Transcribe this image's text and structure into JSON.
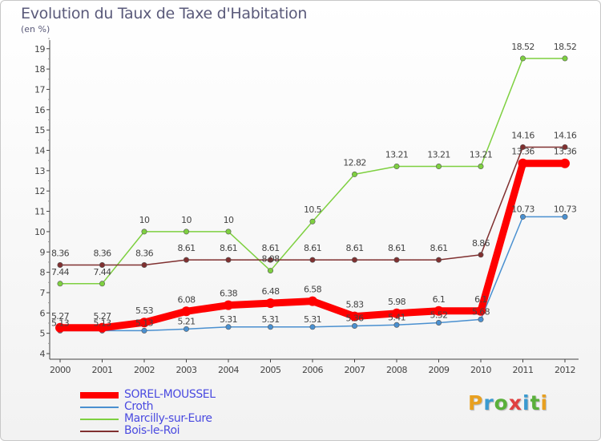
{
  "header": {
    "title": "Evolution du Taux de Taxe d'Habitation",
    "subtitle": "(en %)"
  },
  "logo": {
    "text": "Proxiti",
    "colors": [
      "#e8a020",
      "#3a9ad0",
      "#5ab03a",
      "#e04040",
      "#3a9ad0",
      "#5ab03a",
      "#e8a020"
    ]
  },
  "chart_data": {
    "type": "line",
    "title": "Evolution du Taux de Taxe d'Habitation",
    "subtitle": "(en %)",
    "xlabel": "",
    "ylabel": "",
    "categories": [
      "2000",
      "2001",
      "2002",
      "2003",
      "2004",
      "2005",
      "2006",
      "2007",
      "2008",
      "2009",
      "2010",
      "2011",
      "2012"
    ],
    "yticks": [
      4,
      5,
      6,
      7,
      8,
      9,
      10,
      11,
      12,
      13,
      14,
      15,
      16,
      17,
      18,
      19
    ],
    "ylim": [
      4,
      19.6
    ],
    "grid": false,
    "legend_position": "bottom-left",
    "series": [
      {
        "name": "SOREL-MOUSSEL",
        "color": "#ff0000",
        "values": [
          5.27,
          5.27,
          5.53,
          6.08,
          6.38,
          6.48,
          6.58,
          5.83,
          5.98,
          6.1,
          6.1,
          13.36,
          13.36
        ],
        "labels": [
          "5.27",
          "5.27",
          "5.53",
          "6.08",
          "6.38",
          "6.48",
          "6.58",
          "5.83",
          "5.98",
          "6.1",
          "6.1",
          "13.36",
          "13.36"
        ]
      },
      {
        "name": "Croth",
        "color": "#4a90d0",
        "values": [
          5.13,
          5.13,
          5.13,
          5.21,
          5.31,
          5.31,
          5.31,
          5.36,
          5.41,
          5.52,
          5.68,
          10.73,
          10.73
        ],
        "labels": [
          "5.13",
          "5.13",
          "5.13",
          "5.21",
          "5.31",
          "5.31",
          "5.31",
          "5.36",
          "5.41",
          "5.52",
          "5.68",
          "10.73",
          "10.73"
        ]
      },
      {
        "name": "Marcilly-sur-Eure",
        "color": "#7ed040",
        "values": [
          7.44,
          7.44,
          10,
          10,
          10,
          8.08,
          10.5,
          12.82,
          13.21,
          13.21,
          13.21,
          18.52,
          18.52
        ],
        "labels": [
          "7.44",
          "7.44",
          "10",
          "10",
          "10",
          "8.08",
          "10.5",
          "12.82",
          "13.21",
          "13.21",
          "13.21",
          "18.52",
          "18.52"
        ]
      },
      {
        "name": "Bois-le-Roi",
        "color": "#803030",
        "values": [
          8.36,
          8.36,
          8.36,
          8.61,
          8.61,
          8.61,
          8.61,
          8.61,
          8.61,
          8.61,
          8.86,
          14.16,
          14.16
        ],
        "labels": [
          "8.36",
          "8.36",
          "8.36",
          "8.61",
          "8.61",
          "8.61",
          "8.61",
          "8.61",
          "8.61",
          "8.61",
          "8.86",
          "14.16",
          "14.16"
        ]
      }
    ]
  }
}
